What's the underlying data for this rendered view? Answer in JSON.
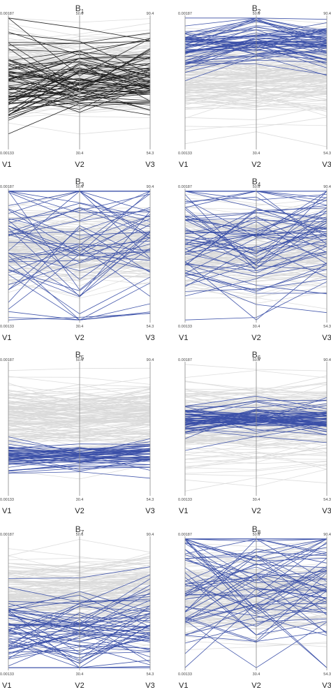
{
  "figure": {
    "background": "#ffffff",
    "axis_color": "#8a8a8a",
    "context_color": "#d9d9d9",
    "highlight_color": "#3a4fa8",
    "all_color": "#1c1c1c"
  },
  "chart_data": [
    {
      "type": "parallel-coordinates",
      "title_base": "B",
      "title_sub": "1",
      "axes": [
        "V1",
        "V2",
        "V3"
      ],
      "axis_max": [
        "0.00187",
        "50.6",
        "90.4"
      ],
      "axis_min": [
        "0.00133",
        "30.4",
        "54.3"
      ],
      "highlight": "all",
      "center": [
        0.5,
        0.52,
        0.55
      ],
      "spread": 0.3,
      "highlight_count": 70
    },
    {
      "type": "parallel-coordinates",
      "title_base": "B",
      "title_sub": "2",
      "axes": [
        "V1",
        "V2",
        "V3"
      ],
      "axis_max": [
        "0.00187",
        "50.6",
        "90.4"
      ],
      "axis_min": [
        "0.00133",
        "30.4",
        "54.3"
      ],
      "highlight": "blue",
      "center": [
        0.76,
        0.82,
        0.79
      ],
      "spread": 0.18,
      "highlight_count": 60
    },
    {
      "type": "parallel-coordinates",
      "title_base": "B",
      "title_sub": "3",
      "axes": [
        "V1",
        "V2",
        "V3"
      ],
      "axis_max": [
        "0.00187",
        "50.6",
        "90.4"
      ],
      "axis_min": [
        "0.00133",
        "30.4",
        "54.3"
      ],
      "highlight": "blue",
      "center": [
        0.54,
        0.5,
        0.58
      ],
      "spread": 0.55,
      "highlight_count": 50
    },
    {
      "type": "parallel-coordinates",
      "title_base": "B",
      "title_sub": "4",
      "axes": [
        "V1",
        "V2",
        "V3"
      ],
      "axis_max": [
        "0.00187",
        "50.6",
        "90.4"
      ],
      "axis_min": [
        "0.00133",
        "30.4",
        "54.3"
      ],
      "highlight": "blue",
      "center": [
        0.62,
        0.58,
        0.62
      ],
      "spread": 0.4,
      "highlight_count": 60
    },
    {
      "type": "parallel-coordinates",
      "title_base": "B",
      "title_sub": "5",
      "axes": [
        "V1",
        "V2",
        "V3"
      ],
      "axis_max": [
        "0.00187",
        "50.6",
        "90.4"
      ],
      "axis_min": [
        "0.00133",
        "30.4",
        "54.3"
      ],
      "highlight": "blue",
      "center": [
        0.3,
        0.3,
        0.31
      ],
      "spread": 0.1,
      "highlight_count": 50
    },
    {
      "type": "parallel-coordinates",
      "title_base": "B",
      "title_sub": "6",
      "axes": [
        "V1",
        "V2",
        "V3"
      ],
      "axis_max": [
        "0.00187",
        "50.6",
        "90.4"
      ],
      "axis_min": [
        "0.00133",
        "30.4",
        "54.3"
      ],
      "highlight": "blue",
      "center": [
        0.56,
        0.58,
        0.57
      ],
      "spread": 0.13,
      "highlight_count": 60
    },
    {
      "type": "parallel-coordinates",
      "title_base": "B",
      "title_sub": "7",
      "axes": [
        "V1",
        "V2",
        "V3"
      ],
      "axis_max": [
        "0.00187",
        "50.6",
        "90.4"
      ],
      "axis_min": [
        "0.00133",
        "30.4",
        "54.3"
      ],
      "highlight": "blue",
      "center": [
        0.3,
        0.28,
        0.33
      ],
      "spread": 0.3,
      "highlight_count": 60
    },
    {
      "type": "parallel-coordinates",
      "title_base": "B",
      "title_sub": "8",
      "axes": [
        "V1",
        "V2",
        "V3"
      ],
      "axis_max": [
        "0.00187",
        "50.6",
        "90.4"
      ],
      "axis_min": [
        "0.00133",
        "30.4",
        "54.3"
      ],
      "highlight": "blue",
      "center": [
        0.62,
        0.62,
        0.62
      ],
      "spread": 0.55,
      "highlight_count": 60
    }
  ]
}
